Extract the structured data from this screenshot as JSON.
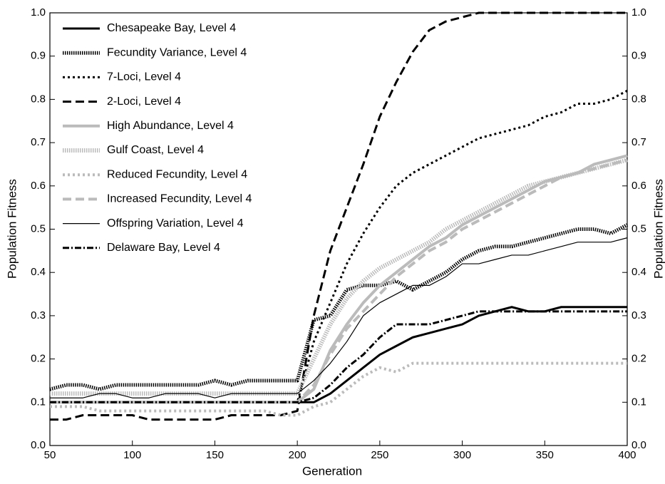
{
  "chart_data": {
    "type": "line",
    "xlabel": "Generation",
    "ylabel": "Population Fitness",
    "y2label": "Population Fitness",
    "x": [
      50,
      60,
      70,
      80,
      90,
      100,
      110,
      120,
      130,
      140,
      150,
      160,
      170,
      180,
      190,
      200,
      210,
      220,
      230,
      240,
      250,
      260,
      270,
      280,
      290,
      300,
      310,
      320,
      330,
      340,
      350,
      360,
      370,
      380,
      390,
      400
    ],
    "xlim": [
      50,
      400
    ],
    "xticks": [
      50,
      100,
      150,
      200,
      250,
      300,
      350,
      400
    ],
    "ylim": [
      0,
      1
    ],
    "yticks": [
      {
        "value": 0,
        "label": "0.0"
      },
      0.1,
      0.2,
      0.3,
      0.4,
      0.5,
      0.6,
      0.7,
      0.8,
      0.9,
      {
        "value": 1,
        "label": "1.0"
      }
    ],
    "y2lim": [
      0,
      1
    ],
    "y2ticks": [
      {
        "value": 0,
        "label": "0.0"
      },
      0.1,
      0.2,
      0.3,
      0.4,
      0.5,
      0.6,
      0.7,
      0.8,
      0.9,
      {
        "value": 1,
        "label": "1.0"
      }
    ],
    "legend": "upper left",
    "series": [
      {
        "name": "Chesapeake Bay, Level 4",
        "color": "#000000",
        "width": 3,
        "dash": "none",
        "values": [
          0.1,
          0.1,
          0.1,
          0.1,
          0.1,
          0.1,
          0.1,
          0.1,
          0.1,
          0.1,
          0.1,
          0.1,
          0.1,
          0.1,
          0.1,
          0.1,
          0.1,
          0.12,
          0.15,
          0.18,
          0.21,
          0.23,
          0.25,
          0.26,
          0.27,
          0.28,
          0.3,
          0.31,
          0.32,
          0.31,
          0.31,
          0.32,
          0.32,
          0.32,
          0.32,
          0.32
        ]
      },
      {
        "name": "Fecundity Variance, Level 4",
        "color": "#000000",
        "width": 5,
        "dash": "1.5 1.5",
        "values": [
          0.13,
          0.14,
          0.14,
          0.13,
          0.14,
          0.14,
          0.14,
          0.14,
          0.14,
          0.14,
          0.15,
          0.14,
          0.15,
          0.15,
          0.15,
          0.15,
          0.29,
          0.3,
          0.36,
          0.37,
          0.37,
          0.38,
          0.36,
          0.38,
          0.4,
          0.43,
          0.45,
          0.46,
          0.46,
          0.47,
          0.48,
          0.49,
          0.5,
          0.5,
          0.49,
          0.51
        ]
      },
      {
        "name": "7-Loci, Level 4",
        "color": "#000000",
        "width": 3,
        "dash": "3 4",
        "values": [
          0.1,
          0.1,
          0.1,
          0.1,
          0.1,
          0.1,
          0.1,
          0.1,
          0.1,
          0.1,
          0.1,
          0.1,
          0.1,
          0.1,
          0.1,
          0.1,
          0.24,
          0.33,
          0.42,
          0.49,
          0.55,
          0.6,
          0.63,
          0.65,
          0.67,
          0.69,
          0.71,
          0.72,
          0.73,
          0.74,
          0.76,
          0.77,
          0.79,
          0.79,
          0.8,
          0.82
        ]
      },
      {
        "name": "2-Loci, Level 4",
        "color": "#000000",
        "width": 3,
        "dash": "12 6",
        "values": [
          0.06,
          0.06,
          0.07,
          0.07,
          0.07,
          0.07,
          0.06,
          0.06,
          0.06,
          0.06,
          0.06,
          0.07,
          0.07,
          0.07,
          0.07,
          0.08,
          0.3,
          0.45,
          0.55,
          0.65,
          0.76,
          0.84,
          0.91,
          0.96,
          0.98,
          0.99,
          1.0,
          1.0,
          1.0,
          1.0,
          1.0,
          1.0,
          1.0,
          1.0,
          1.0,
          1.0
        ]
      },
      {
        "name": "High Abundance, Level 4",
        "color": "#bbbbbb",
        "width": 4,
        "dash": "none",
        "values": [
          0.1,
          0.1,
          0.1,
          0.1,
          0.1,
          0.1,
          0.1,
          0.1,
          0.1,
          0.1,
          0.1,
          0.1,
          0.1,
          0.1,
          0.1,
          0.1,
          0.13,
          0.22,
          0.28,
          0.33,
          0.37,
          0.4,
          0.43,
          0.46,
          0.48,
          0.51,
          0.53,
          0.55,
          0.57,
          0.59,
          0.61,
          0.62,
          0.63,
          0.65,
          0.66,
          0.67
        ]
      },
      {
        "name": "Gulf Coast, Level 4",
        "color": "#bbbbbb",
        "width": 6,
        "dash": "1.5 1.5",
        "values": [
          0.12,
          0.12,
          0.12,
          0.12,
          0.12,
          0.12,
          0.12,
          0.12,
          0.12,
          0.12,
          0.12,
          0.12,
          0.12,
          0.12,
          0.12,
          0.12,
          0.2,
          0.28,
          0.34,
          0.38,
          0.41,
          0.43,
          0.45,
          0.47,
          0.5,
          0.52,
          0.54,
          0.56,
          0.58,
          0.6,
          0.61,
          0.62,
          0.63,
          0.64,
          0.65,
          0.66
        ]
      },
      {
        "name": "Reduced Fecundity, Level 4",
        "color": "#bbbbbb",
        "width": 4,
        "dash": "3 4",
        "values": [
          0.09,
          0.09,
          0.09,
          0.08,
          0.08,
          0.08,
          0.08,
          0.08,
          0.08,
          0.08,
          0.08,
          0.08,
          0.08,
          0.08,
          0.07,
          0.07,
          0.09,
          0.1,
          0.13,
          0.16,
          0.18,
          0.17,
          0.19,
          0.19,
          0.19,
          0.19,
          0.19,
          0.19,
          0.19,
          0.19,
          0.19,
          0.19,
          0.19,
          0.19,
          0.19,
          0.19
        ]
      },
      {
        "name": "Increased Fecundity, Level 4",
        "color": "#bbbbbb",
        "width": 4,
        "dash": "12 6",
        "values": [
          0.1,
          0.1,
          0.1,
          0.1,
          0.1,
          0.1,
          0.1,
          0.1,
          0.1,
          0.1,
          0.1,
          0.1,
          0.1,
          0.1,
          0.1,
          0.1,
          0.14,
          0.21,
          0.27,
          0.31,
          0.35,
          0.39,
          0.42,
          0.45,
          0.47,
          0.5,
          0.52,
          0.54,
          0.56,
          0.58,
          0.6,
          0.62,
          0.63,
          0.64,
          0.65,
          0.66
        ]
      },
      {
        "name": "Offspring Variation, Level 4",
        "color": "#000000",
        "width": 1.2,
        "dash": "none",
        "values": [
          0.11,
          0.11,
          0.11,
          0.12,
          0.12,
          0.11,
          0.11,
          0.12,
          0.12,
          0.12,
          0.11,
          0.12,
          0.12,
          0.12,
          0.12,
          0.12,
          0.15,
          0.19,
          0.24,
          0.3,
          0.33,
          0.35,
          0.37,
          0.37,
          0.39,
          0.42,
          0.42,
          0.43,
          0.44,
          0.44,
          0.45,
          0.46,
          0.47,
          0.47,
          0.47,
          0.48
        ]
      },
      {
        "name": "Delaware Bay, Level 4",
        "color": "#000000",
        "width": 3,
        "dash": "9 3 2 3",
        "values": [
          0.1,
          0.1,
          0.1,
          0.1,
          0.1,
          0.1,
          0.1,
          0.1,
          0.1,
          0.1,
          0.1,
          0.1,
          0.1,
          0.1,
          0.1,
          0.1,
          0.11,
          0.14,
          0.18,
          0.21,
          0.25,
          0.28,
          0.28,
          0.28,
          0.29,
          0.3,
          0.31,
          0.31,
          0.31,
          0.31,
          0.31,
          0.31,
          0.31,
          0.31,
          0.31,
          0.31
        ]
      }
    ]
  }
}
